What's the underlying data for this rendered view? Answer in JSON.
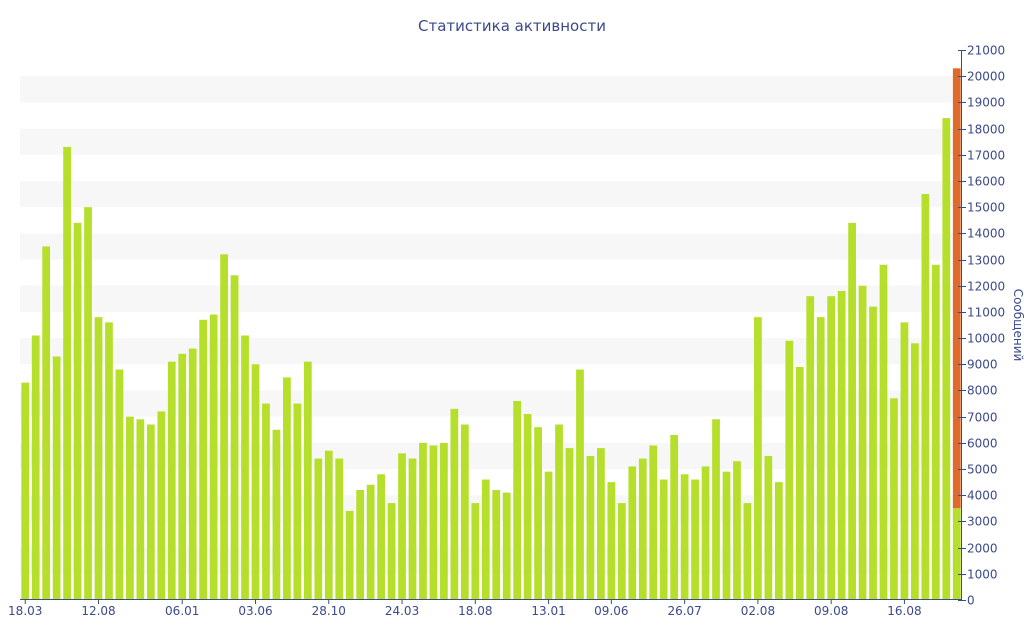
{
  "chart_data": {
    "type": "bar",
    "title": "Статистика активности",
    "ylabel": "Сообщений",
    "xlabel": "",
    "ylim": [
      0,
      21000
    ],
    "y_ticks": [
      0,
      1000,
      2000,
      3000,
      4000,
      5000,
      6000,
      7000,
      8000,
      9000,
      10000,
      11000,
      12000,
      13000,
      14000,
      15000,
      16000,
      17000,
      18000,
      19000,
      20000,
      21000
    ],
    "y_axis_side": "right",
    "x_tick_labels": [
      {
        "index": 0,
        "label": "18.03"
      },
      {
        "index": 7,
        "label": "12.08"
      },
      {
        "index": 15,
        "label": "06.01"
      },
      {
        "index": 22,
        "label": "03.06"
      },
      {
        "index": 29,
        "label": "28.10"
      },
      {
        "index": 36,
        "label": "24.03"
      },
      {
        "index": 43,
        "label": "18.08"
      },
      {
        "index": 50,
        "label": "13.01"
      },
      {
        "index": 56,
        "label": "09.06"
      },
      {
        "index": 63,
        "label": "26.07"
      },
      {
        "index": 70,
        "label": "02.08"
      },
      {
        "index": 77,
        "label": "09.08"
      },
      {
        "index": 84,
        "label": "16.08"
      }
    ],
    "bar_color": "#b5df2a",
    "highlight_color": "#e06a2b",
    "values": [
      8300,
      10100,
      13500,
      9300,
      17300,
      14400,
      15000,
      10800,
      10600,
      8800,
      7000,
      6900,
      6700,
      7200,
      9100,
      9400,
      9600,
      10700,
      10900,
      13200,
      12400,
      10100,
      9000,
      7500,
      6500,
      8500,
      7500,
      9100,
      5400,
      5700,
      5400,
      3400,
      4200,
      4400,
      4800,
      3700,
      5600,
      5400,
      6000,
      5900,
      6000,
      7300,
      6700,
      3700,
      4600,
      4200,
      4100,
      7600,
      7100,
      6600,
      4900,
      6700,
      5800,
      8800,
      5500,
      5800,
      4500,
      3700,
      5100,
      5400,
      5900,
      4600,
      6300,
      4800,
      4600,
      5100,
      6900,
      4900,
      5300,
      3700,
      10800,
      5500,
      4500,
      9900,
      8900,
      11600,
      10800,
      11600,
      11800,
      14400,
      12000,
      11200,
      12800,
      7700,
      10600,
      9800,
      15500,
      12800,
      18400,
      3500
    ],
    "highlight": {
      "index": 89,
      "total": 20300
    }
  }
}
